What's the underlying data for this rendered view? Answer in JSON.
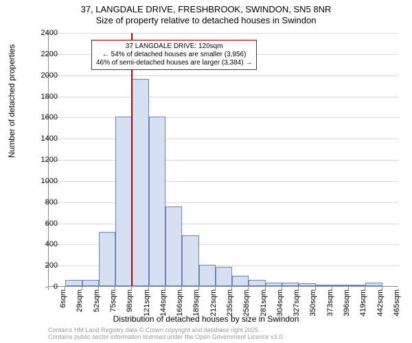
{
  "title_line1": "37, LANGDALE DRIVE, FRESHBROOK, SWINDON, SN5 8NR",
  "title_line2": "Size of property relative to detached houses in Swindon",
  "y_axis_label": "Number of detached properties",
  "x_axis_label": "Distribution of detached houses by size in Swindon",
  "footer_line1": "Contains HM Land Registry data © Crown copyright and database right 2025.",
  "footer_line2": "Contains public sector information licensed under the Open Government Licence v3.0.",
  "annotation_line1": "37 LANGDALE DRIVE: 120sqm",
  "annotation_line2": "← 54% of detached houses are smaller (3,956)",
  "annotation_line3": "46% of semi-detached houses are larger (3,384) →",
  "chart": {
    "type": "histogram",
    "ylim": [
      0,
      2400
    ],
    "ytick_step": 200,
    "bar_fill": "#d6e0f2",
    "bar_border": "#6a84b8",
    "background": "#ffffff",
    "grid_color": "#d8d8d8",
    "property_line_color": "#cc0000",
    "property_value": 120,
    "x_start": 6,
    "x_step": 23,
    "suffix": "sqm",
    "bars": [
      {
        "x": 6,
        "y": 0
      },
      {
        "x": 29,
        "y": 60
      },
      {
        "x": 52,
        "y": 60
      },
      {
        "x": 75,
        "y": 510
      },
      {
        "x": 98,
        "y": 1600
      },
      {
        "x": 121,
        "y": 1960
      },
      {
        "x": 144,
        "y": 1600
      },
      {
        "x": 166,
        "y": 750
      },
      {
        "x": 189,
        "y": 480
      },
      {
        "x": 212,
        "y": 200
      },
      {
        "x": 235,
        "y": 180
      },
      {
        "x": 258,
        "y": 100
      },
      {
        "x": 281,
        "y": 60
      },
      {
        "x": 304,
        "y": 30
      },
      {
        "x": 327,
        "y": 30
      },
      {
        "x": 350,
        "y": 25
      },
      {
        "x": 373,
        "y": 10
      },
      {
        "x": 396,
        "y": 10
      },
      {
        "x": 419,
        "y": 10
      },
      {
        "x": 442,
        "y": 30
      },
      {
        "x": 465,
        "y": 0
      }
    ],
    "title_fontsize": 13,
    "axis_label_fontsize": 12,
    "tick_fontsize": 11,
    "annotation_fontsize": 10
  }
}
